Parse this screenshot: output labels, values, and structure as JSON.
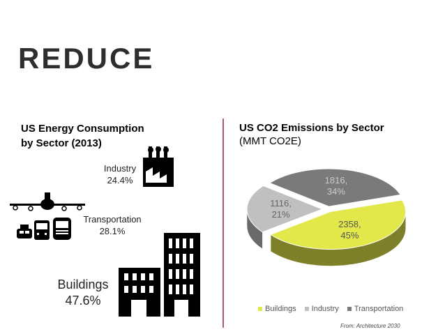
{
  "slide": {
    "title": "REDUCE",
    "source": "From: Architecture 2030"
  },
  "left_panel": {
    "heading_line1": "US Energy Consumption",
    "heading_line2": "by Sector (2013)",
    "industry": {
      "label": "Industry",
      "value": "24.4%"
    },
    "transportation": {
      "label": "Transportation",
      "value": "28.1%"
    },
    "buildings": {
      "label": "Buildings",
      "value": "47.6%"
    }
  },
  "colors": {
    "buildings": "#e3e84a",
    "industry": "#c0c0c0",
    "transportation": "#7a7a7a",
    "divider": "#b5547a"
  },
  "chart_data": {
    "type": "pie",
    "title": "US CO2 Emissions by Sector",
    "subtitle": "(MMT CO2E)",
    "categories": [
      "Buildings",
      "Industry",
      "Transportation"
    ],
    "values": [
      2358,
      1116,
      1816
    ],
    "percent_labels": [
      "45%",
      "21%",
      "34%"
    ],
    "value_labels": [
      "2358,",
      "1116,",
      "1816,"
    ],
    "legend_position": "bottom",
    "style": "3d-exploded"
  }
}
